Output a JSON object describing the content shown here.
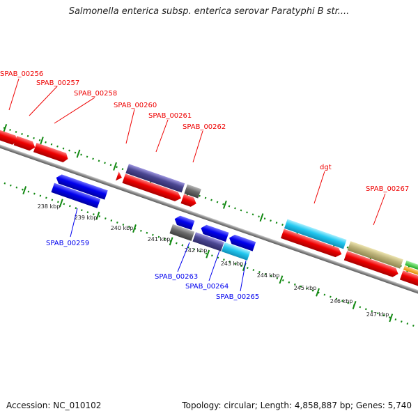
{
  "title": "Salmonella enterica subsp. enterica serovar Paratyphi B str....",
  "footer": {
    "accession": "Accession: NC_010102",
    "summary": "Topology: circular; Length: 4,858,887 bp; Genes: 5,740"
  },
  "colors": {
    "forward_gene": "#ee0000",
    "reverse_gene": "#0000ee",
    "backbone": "#909090",
    "tick": "#118811"
  },
  "ticks": [
    "238 kbp",
    "239 kbp",
    "240 kbp",
    "241 kbp",
    "242 kbp",
    "243 kbp",
    "244 kbp",
    "245 kbp",
    "246 kbp",
    "247 kbp"
  ],
  "forward_genes": [
    {
      "label": "SPAB_00256"
    },
    {
      "label": "SPAB_00257"
    },
    {
      "label": "SPAB_00258"
    },
    {
      "label": "SPAB_00260"
    },
    {
      "label": "SPAB_00261"
    },
    {
      "label": "SPAB_00262"
    },
    {
      "label": "dgt"
    },
    {
      "label": "SPAB_00267"
    }
  ],
  "reverse_genes": [
    {
      "label": "SPAB_00259"
    },
    {
      "label": "SPAB_00263"
    },
    {
      "label": "SPAB_00264"
    },
    {
      "label": "SPAB_00265"
    }
  ]
}
